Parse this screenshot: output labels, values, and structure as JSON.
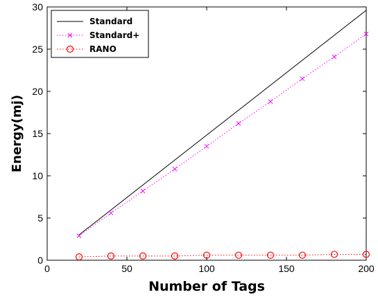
{
  "chart_data": {
    "type": "line",
    "xlabel": "Number of Tags",
    "ylabel": "Energy(mj)",
    "xlim": [
      0,
      200
    ],
    "ylim": [
      0,
      30
    ],
    "xticks": [
      "0",
      "50",
      "100",
      "150",
      "200"
    ],
    "yticks": [
      "0",
      "5",
      "10",
      "15",
      "20",
      "25",
      "30"
    ],
    "grid": false,
    "legend_position": "top-left",
    "series": [
      {
        "name": "Standard",
        "color": "#000000",
        "line": "solid",
        "marker": "none",
        "x": [
          20,
          200
        ],
        "y": [
          3.0,
          29.6
        ]
      },
      {
        "name": "Standard+",
        "color": "#ff00ff",
        "line": "dotted",
        "marker": "x",
        "x": [
          20,
          40,
          60,
          80,
          100,
          120,
          140,
          160,
          180,
          200
        ],
        "y": [
          2.9,
          5.6,
          8.2,
          10.8,
          13.5,
          16.2,
          18.8,
          21.5,
          24.1,
          26.8
        ]
      },
      {
        "name": "RANO",
        "color": "#ff0000",
        "line": "dotted",
        "marker": "circle",
        "x": [
          20,
          40,
          60,
          80,
          100,
          120,
          140,
          160,
          180,
          200
        ],
        "y": [
          0.4,
          0.5,
          0.5,
          0.5,
          0.6,
          0.6,
          0.6,
          0.6,
          0.7,
          0.7
        ]
      }
    ]
  }
}
